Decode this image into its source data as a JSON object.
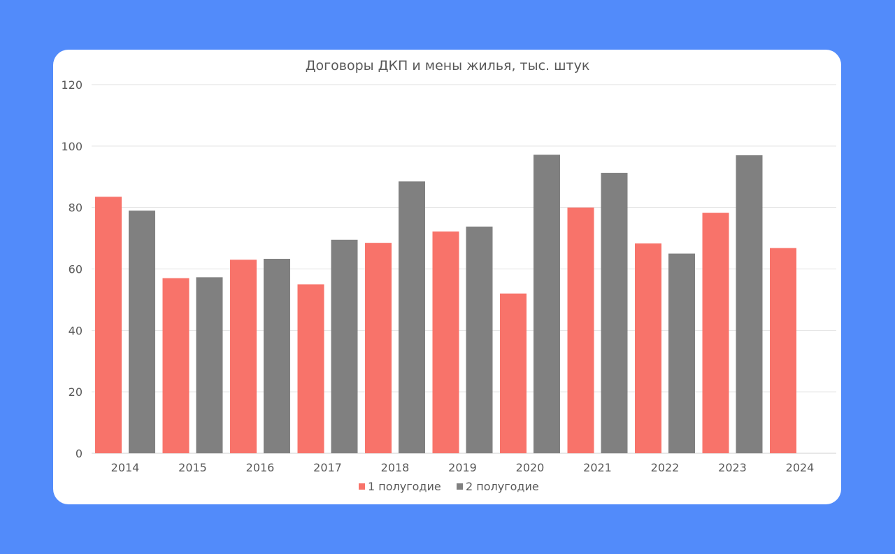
{
  "chart_data": {
    "type": "bar",
    "title": "Договоры ДКП и мены жилья, тыс. штук",
    "categories": [
      "2014",
      "2015",
      "2016",
      "2017",
      "2018",
      "2019",
      "2020",
      "2021",
      "2022",
      "2023",
      "2024"
    ],
    "series": [
      {
        "name": "1 полугодие",
        "color": "#f8736a",
        "values": [
          83.5,
          57,
          63,
          55,
          68.5,
          72.2,
          52,
          80,
          68.3,
          78.3,
          66.8
        ]
      },
      {
        "name": "2 полугодие",
        "color": "#808080",
        "values": [
          79,
          57.3,
          63.3,
          69.5,
          88.5,
          73.8,
          97.2,
          91.3,
          65,
          97,
          null
        ]
      }
    ],
    "ylim": [
      0,
      120
    ],
    "yticks": [
      "0",
      "20",
      "40",
      "60",
      "80",
      "100",
      "120"
    ],
    "grid": true,
    "legend_position": "bottom"
  }
}
